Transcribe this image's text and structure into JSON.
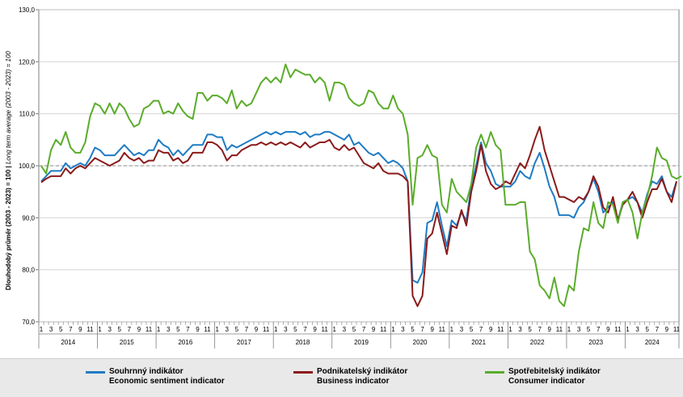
{
  "chart_data": {
    "type": "line",
    "ylabel_primary": "Dlouhodobý průměr (2003 - 2023) = 100 | ",
    "ylabel_secondary": "Long term average (2003 - 2023) = 100",
    "ylim": [
      70,
      130
    ],
    "yticks": [
      "70,0",
      "80,0",
      "90,0",
      "100,0",
      "110,0",
      "120,0",
      "130,0"
    ],
    "reference_line": 100,
    "x_start": "2014-01",
    "month_ticks": [
      "1",
      "3",
      "5",
      "7",
      "9",
      "11"
    ],
    "last_month_tick": "9",
    "years": [
      "2014",
      "2015",
      "2016",
      "2017",
      "2018",
      "2019",
      "2020",
      "2021",
      "2022",
      "2023",
      "2024"
    ],
    "series": [
      {
        "name": "Souhrnný indikátor",
        "name_en": "Economic sentiment indicator",
        "color": "#1f7bc4",
        "values": [
          97,
          98,
          99,
          99,
          99,
          100.5,
          99.5,
          100,
          100.5,
          100,
          101.5,
          103.5,
          103,
          102,
          102,
          102,
          103,
          104,
          103,
          102,
          102.5,
          102,
          103,
          103,
          105,
          104,
          103.5,
          102,
          103,
          102,
          103,
          104,
          104,
          104,
          106,
          106,
          105.5,
          105.5,
          103,
          104,
          103.5,
          104,
          104.5,
          105,
          105.5,
          106,
          106.5,
          106,
          106.5,
          106,
          106.5,
          106.5,
          106.5,
          106,
          106.5,
          105.5,
          106,
          106,
          106.5,
          106.5,
          106,
          105.5,
          105,
          106,
          104,
          104.5,
          103.5,
          102.5,
          102,
          102.5,
          101.5,
          100.5,
          101,
          100.5,
          99.5,
          97,
          78,
          77.5,
          79.5,
          89,
          89.5,
          93,
          88.5,
          84.5,
          89.5,
          88.5,
          91,
          89.5,
          96,
          100,
          104.5,
          100.5,
          99,
          96.5,
          96,
          96,
          96,
          97,
          99,
          98,
          97.5,
          100.5,
          102.5,
          99.5,
          96,
          94,
          90.5,
          90.5,
          90.5,
          90,
          92,
          93,
          95,
          97.5,
          95,
          91,
          92,
          93,
          89.5,
          93,
          93.5,
          94,
          93,
          91,
          94.5,
          97,
          96.5,
          98,
          95,
          94,
          97
        ]
      },
      {
        "name": "Podnikatelský indikátor",
        "name_en": "Business indicator",
        "color": "#8b1a1a",
        "values": [
          96.8,
          97.5,
          98,
          98,
          98,
          99.5,
          98.5,
          99.5,
          100,
          99.5,
          100.5,
          101.5,
          101,
          100.5,
          100,
          100.5,
          101,
          102.5,
          101.5,
          101,
          101.5,
          100.5,
          101,
          101,
          103,
          102.5,
          102.5,
          101,
          101.5,
          100.5,
          101,
          102.5,
          102.5,
          102.5,
          104.5,
          104.5,
          104,
          103,
          101,
          102,
          102,
          103,
          103.5,
          104,
          104,
          104.5,
          104,
          104.5,
          104,
          104.5,
          104,
          104.5,
          104,
          103.5,
          104.5,
          103.5,
          104,
          104.5,
          104.5,
          105,
          103.5,
          103,
          104,
          103,
          103.5,
          102,
          100.5,
          100,
          99.5,
          100.5,
          99,
          98.5,
          98.5,
          98.5,
          98,
          97,
          75,
          73,
          75,
          86,
          87,
          91,
          87,
          83,
          88.5,
          88,
          91.5,
          88.5,
          95,
          99,
          104,
          99,
          96.5,
          95.5,
          96,
          97,
          96.5,
          98.5,
          100.5,
          99.5,
          102,
          105,
          107.5,
          103,
          100,
          97,
          94,
          94,
          93.5,
          93,
          94,
          93.5,
          95,
          98,
          96,
          92,
          91,
          94,
          89.5,
          92.5,
          93.5,
          95,
          93,
          90,
          93,
          95.5,
          95.5,
          97.5,
          95,
          93,
          97
        ]
      },
      {
        "name": "Spotřebitelský indikátor",
        "name_en": "Consumer indicator",
        "color": "#5aac2a",
        "values": [
          100,
          98.5,
          103,
          105,
          104,
          106.5,
          103.5,
          102.5,
          102.5,
          104.5,
          109.5,
          112,
          111.5,
          110,
          112,
          110,
          112,
          111,
          109,
          107.5,
          108,
          111,
          111.5,
          112.5,
          112.5,
          110,
          110.5,
          110,
          112,
          110.5,
          109.5,
          109,
          114,
          114,
          112.5,
          113.5,
          113.5,
          113,
          112,
          114.5,
          111,
          112.5,
          111.5,
          112,
          114,
          116,
          117,
          116,
          117,
          116,
          119.5,
          117,
          118.5,
          118,
          117.5,
          117.5,
          116,
          117,
          116,
          112.5,
          116,
          116,
          115.5,
          113,
          112,
          111.5,
          112,
          114.5,
          114,
          112,
          111,
          111,
          113.5,
          111,
          110,
          106,
          92.5,
          101.5,
          102,
          104,
          102,
          101.5,
          92.5,
          91,
          97.5,
          95,
          94,
          93,
          96.5,
          103.5,
          106,
          103.5,
          106.5,
          104,
          103,
          92.5,
          92.5,
          92.5,
          93,
          93,
          83.5,
          82,
          77,
          76,
          74.5,
          78.5,
          74,
          73,
          77,
          76,
          83.5,
          88,
          87.5,
          93,
          89,
          88,
          93,
          92.5,
          89,
          93,
          93.5,
          91,
          86,
          91,
          94,
          98,
          103.5,
          101.5,
          101,
          98,
          97.5,
          98
        ]
      }
    ]
  }
}
